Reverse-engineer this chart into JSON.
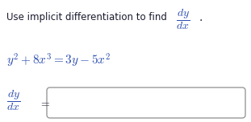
{
  "bg_color": "#ffffff",
  "text_color": "#1a1a2e",
  "math_color": "#2b4cb0",
  "instruction": "Use implicit differentiation to find",
  "equation": "$y^2 + 8x^3 = 3y - 5x^2$",
  "fig_width": 3.11,
  "fig_height": 1.52,
  "dpi": 100,
  "box_edge_color": "#999999",
  "equals_color": "#1a1a2e"
}
